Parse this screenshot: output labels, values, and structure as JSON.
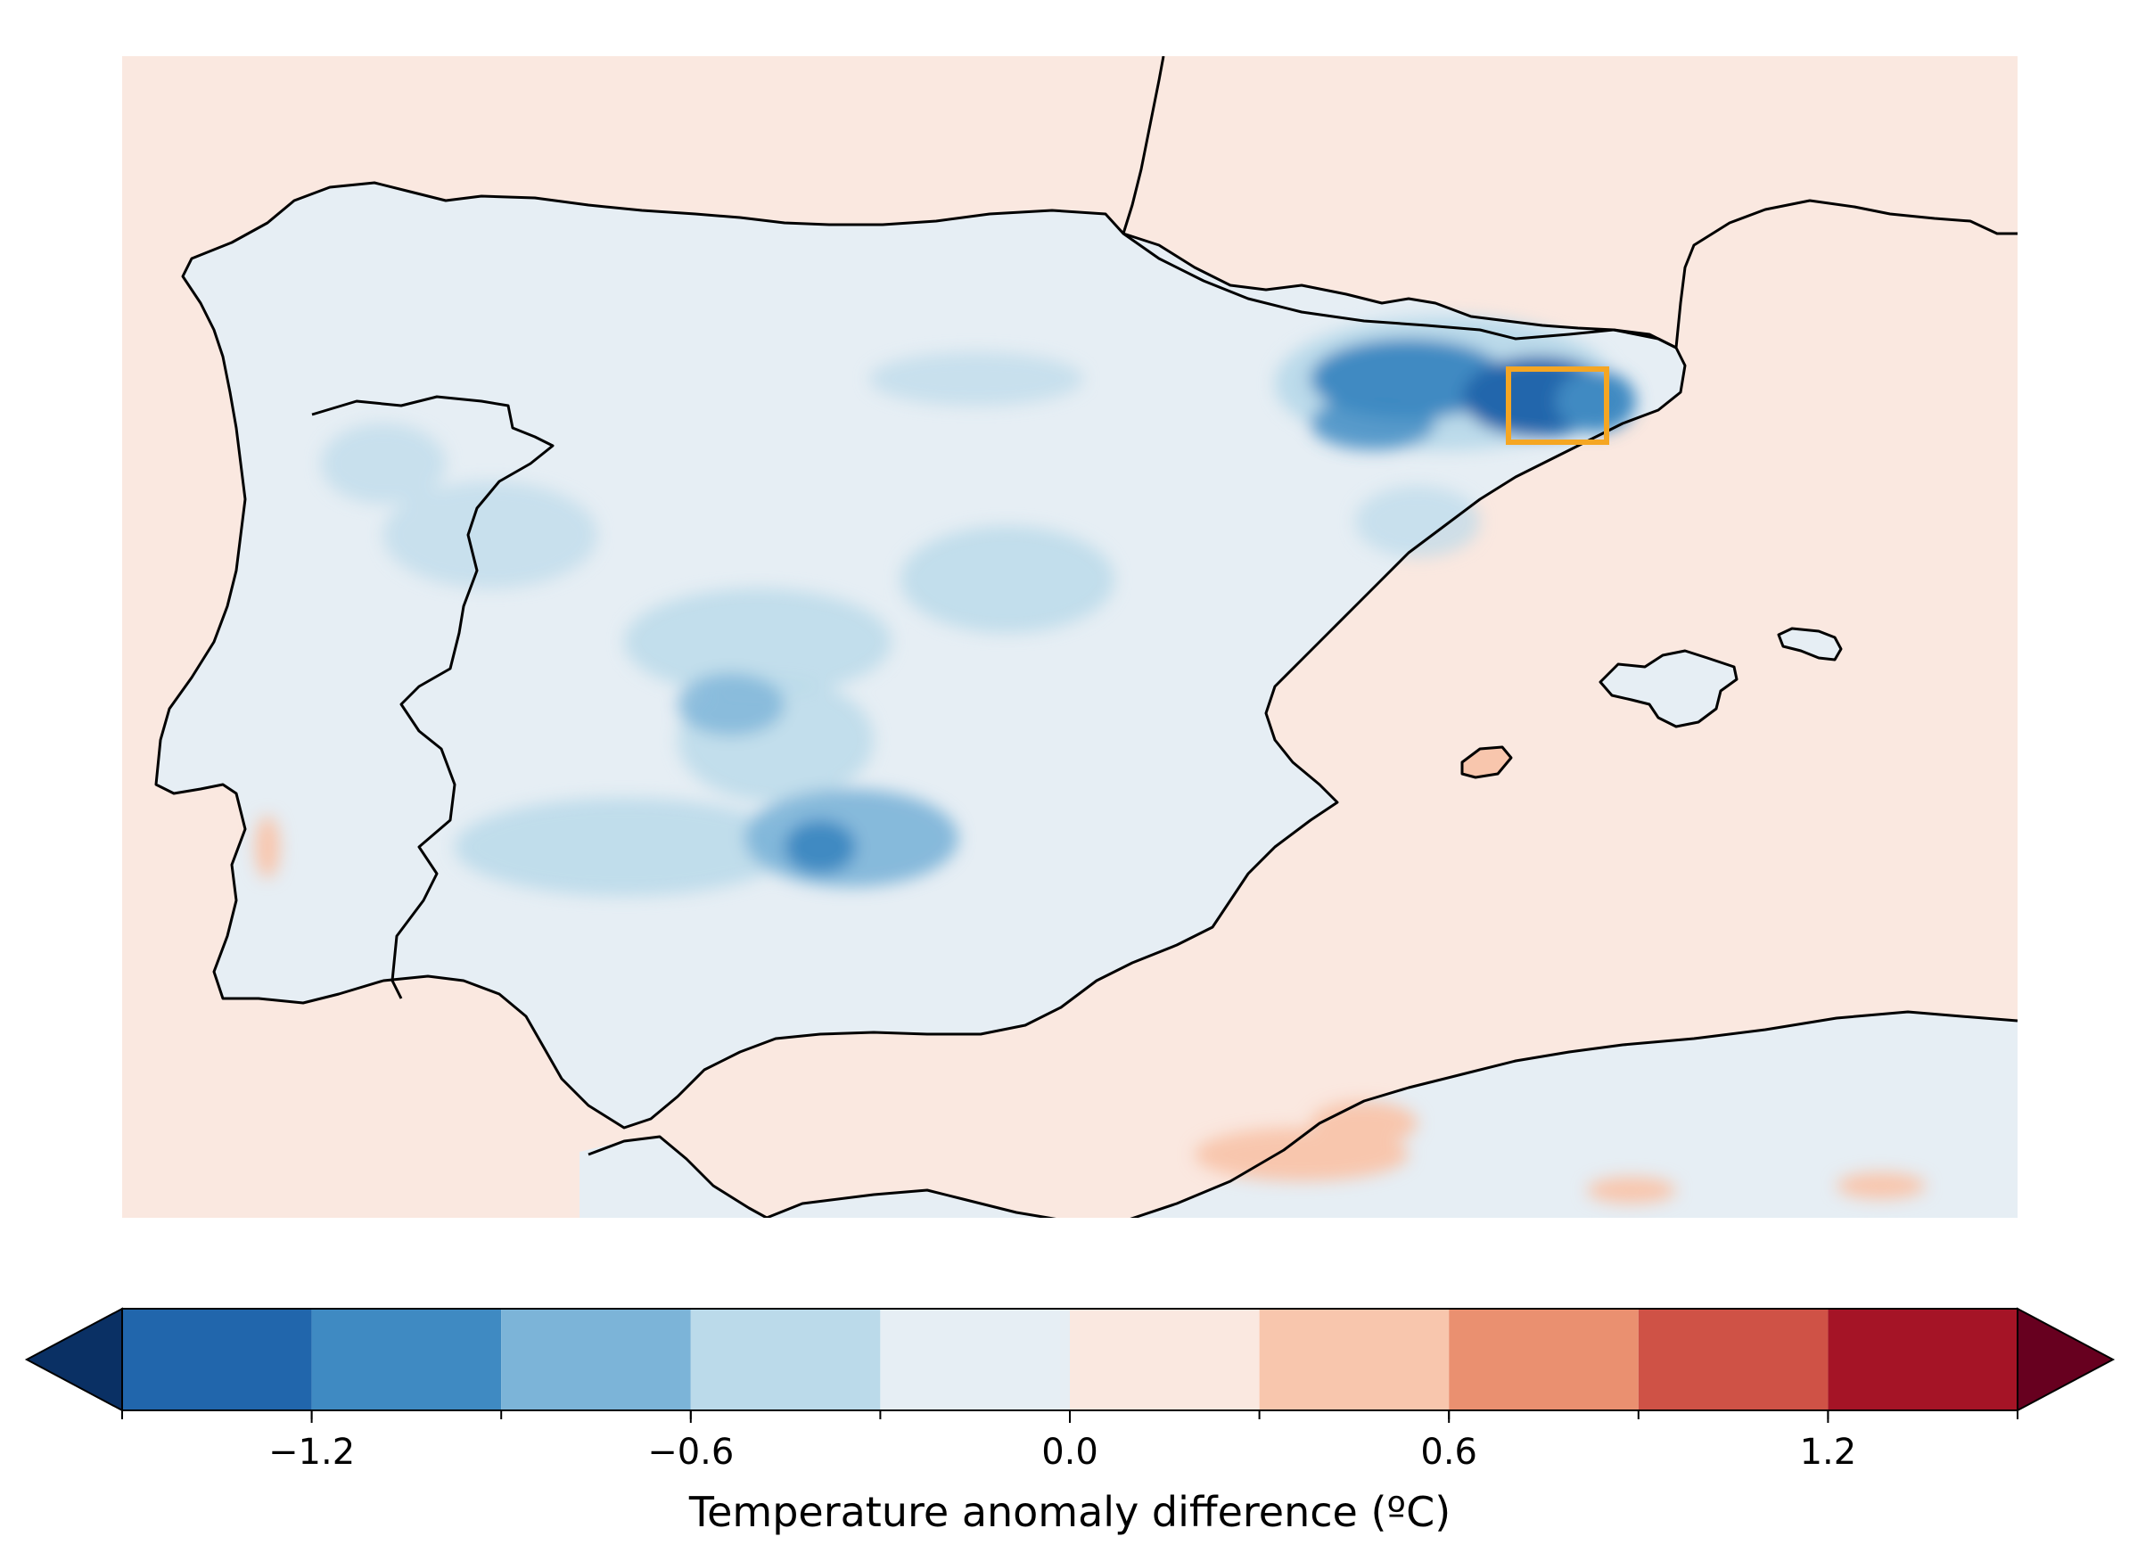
{
  "figure": {
    "type": "map",
    "region": "Iberian Peninsula",
    "colors": {
      "land_background": "#e6eef4",
      "sea_background": "#fae8e0",
      "coastline": "#000000",
      "highlight_box": "#f5a623"
    },
    "highlight_box_present": true
  },
  "colorbar": {
    "label": "Temperature anomaly difference (ºC)",
    "levels": [
      -1.5,
      -1.2,
      -0.9,
      -0.6,
      -0.3,
      0.0,
      0.3,
      0.6,
      0.9,
      1.2,
      1.5
    ],
    "colors": [
      "#2166ac",
      "#3f8ac2",
      "#7cb4d8",
      "#bbdaea",
      "#e6eef4",
      "#fae8e0",
      "#f8c6ad",
      "#ea9070",
      "#cf5246",
      "#a51426"
    ],
    "extend_low_color": "#0a3064",
    "extend_high_color": "#67001f",
    "tick_values": [
      -1.2,
      -0.6,
      0.0,
      0.6,
      1.2
    ],
    "tick_labels": [
      "−1.2",
      "−0.6",
      "0.0",
      "0.6",
      "1.2"
    ]
  }
}
